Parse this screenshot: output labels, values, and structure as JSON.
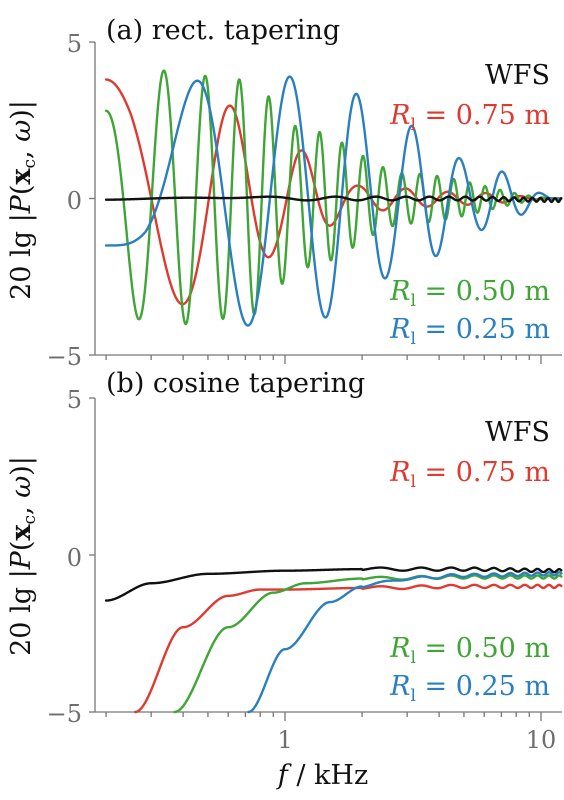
{
  "chart_data": [
    {
      "type": "line",
      "title": "(a) rect. tapering",
      "ylabel": "20 lg |P(x_c, ω)|",
      "xlabel": "",
      "xscale": "log",
      "xlim": [
        0.2,
        12
      ],
      "ylim": [
        -5,
        5
      ],
      "yticks": [
        -5,
        0,
        5
      ],
      "ytick_labels": [
        "−5",
        "0",
        "5"
      ],
      "xticks": [
        1,
        10
      ],
      "xtick_labels": [
        "",
        ""
      ],
      "series": [
        {
          "name": "WFS",
          "color": "#111111",
          "model": "ripple",
          "x": [
            0.2,
            0.5,
            1,
            2,
            5,
            12
          ],
          "y": [
            -0.05,
            0.05,
            0,
            0,
            0,
            -0.05
          ]
        },
        {
          "name": "R_l = 0.75 m",
          "color": "#e03a30",
          "model": "osc",
          "x": [
            0.2,
            0.5,
            1,
            2,
            5,
            12
          ],
          "y": [
            3.8,
            -3.3,
            1.7,
            -0.4,
            0.2,
            0
          ]
        },
        {
          "name": "R_l = 0.50 m",
          "color": "#3fa535",
          "model": "osc",
          "x": [
            0.2,
            0.3,
            0.7,
            1.2,
            3,
            12
          ],
          "y": [
            2.8,
            4.1,
            -3.8,
            2.2,
            -0.8,
            0
          ]
        },
        {
          "name": "R_l = 0.25 m",
          "color": "#2a7fc1",
          "model": "osc",
          "x": [
            0.2,
            0.57,
            1.5,
            2.8,
            6,
            12
          ],
          "y": [
            -1.5,
            4.1,
            -3.8,
            -2.4,
            1.0,
            0
          ]
        }
      ],
      "annotations": [
        "WFS",
        "R_l = 0.75 m",
        "R_l = 0.50 m",
        "R_l = 0.25 m"
      ]
    },
    {
      "type": "line",
      "title": "(b) cosine tapering",
      "ylabel": "20 lg |P(x_c, ω)|",
      "xlabel": "f / kHz",
      "xscale": "log",
      "xlim": [
        0.2,
        12
      ],
      "ylim": [
        -5,
        5
      ],
      "yticks": [
        -5,
        0,
        5
      ],
      "ytick_labels": [
        "−5",
        "0",
        "5"
      ],
      "xticks": [
        1,
        10
      ],
      "xtick_labels": [
        "1",
        "10"
      ],
      "series": [
        {
          "name": "WFS",
          "color": "#111111",
          "model": "smooth",
          "x": [
            0.2,
            0.3,
            0.5,
            1,
            2,
            5,
            12
          ],
          "y": [
            -1.45,
            -0.9,
            -0.6,
            -0.5,
            -0.45,
            -0.45,
            -0.5
          ]
        },
        {
          "name": "R_l = 0.75 m",
          "color": "#e03a30",
          "model": "smooth",
          "x": [
            0.26,
            0.4,
            0.6,
            0.8,
            1,
            2,
            5,
            12
          ],
          "y": [
            -5,
            -2.3,
            -1.3,
            -1.1,
            -1.1,
            -1.05,
            -1.0,
            -1.0
          ]
        },
        {
          "name": "R_l = 0.50 m",
          "color": "#3fa535",
          "model": "smooth",
          "x": [
            0.37,
            0.6,
            0.9,
            1.2,
            2,
            5,
            12
          ],
          "y": [
            -5,
            -2.3,
            -1.2,
            -0.9,
            -0.75,
            -0.7,
            -0.7
          ]
        },
        {
          "name": "R_l = 0.25 m",
          "color": "#2a7fc1",
          "model": "smooth",
          "x": [
            0.72,
            1.0,
            1.5,
            2,
            3,
            5,
            12
          ],
          "y": [
            -5,
            -3.0,
            -1.5,
            -1.0,
            -0.75,
            -0.65,
            -0.6
          ]
        }
      ],
      "annotations": [
        "WFS",
        "R_l = 0.75 m",
        "R_l = 0.50 m",
        "R_l = 0.25 m"
      ]
    }
  ]
}
